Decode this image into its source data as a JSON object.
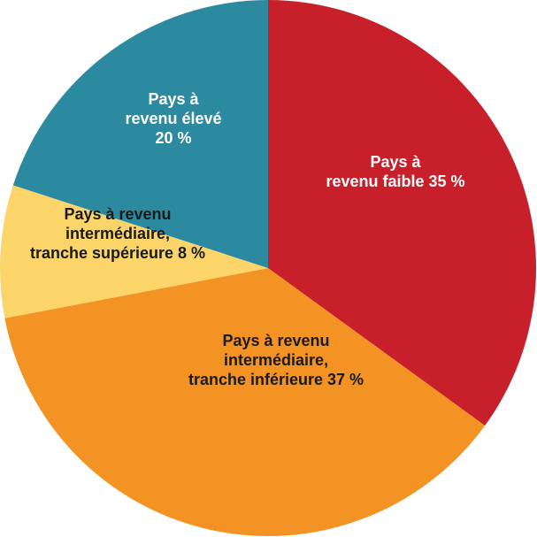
{
  "chart_data": {
    "type": "pie",
    "title": "",
    "start_direction": "top",
    "direction": "clockwise",
    "slices": [
      {
        "label_lines": [
          "Pays à",
          "revenu faible 35 %"
        ],
        "value": 35,
        "color": "#c8202a",
        "text_color": "#ffffff"
      },
      {
        "label_lines": [
          "Pays à revenu",
          "intermédiaire,",
          "tranche inférieure 37 %"
        ],
        "value": 37,
        "color": "#f39324",
        "text_color": "#1a1a1a"
      },
      {
        "label_lines": [
          "Pays à revenu",
          "intermédiaire,",
          "tranche supérieure 8 %"
        ],
        "value": 8,
        "color": "#fbd56a",
        "text_color": "#1a1a1a"
      },
      {
        "label_lines": [
          "Pays à",
          "revenu élevé",
          "20 %"
        ],
        "value": 20,
        "color": "#2b8aa0",
        "text_color": "#ffffff"
      }
    ]
  }
}
